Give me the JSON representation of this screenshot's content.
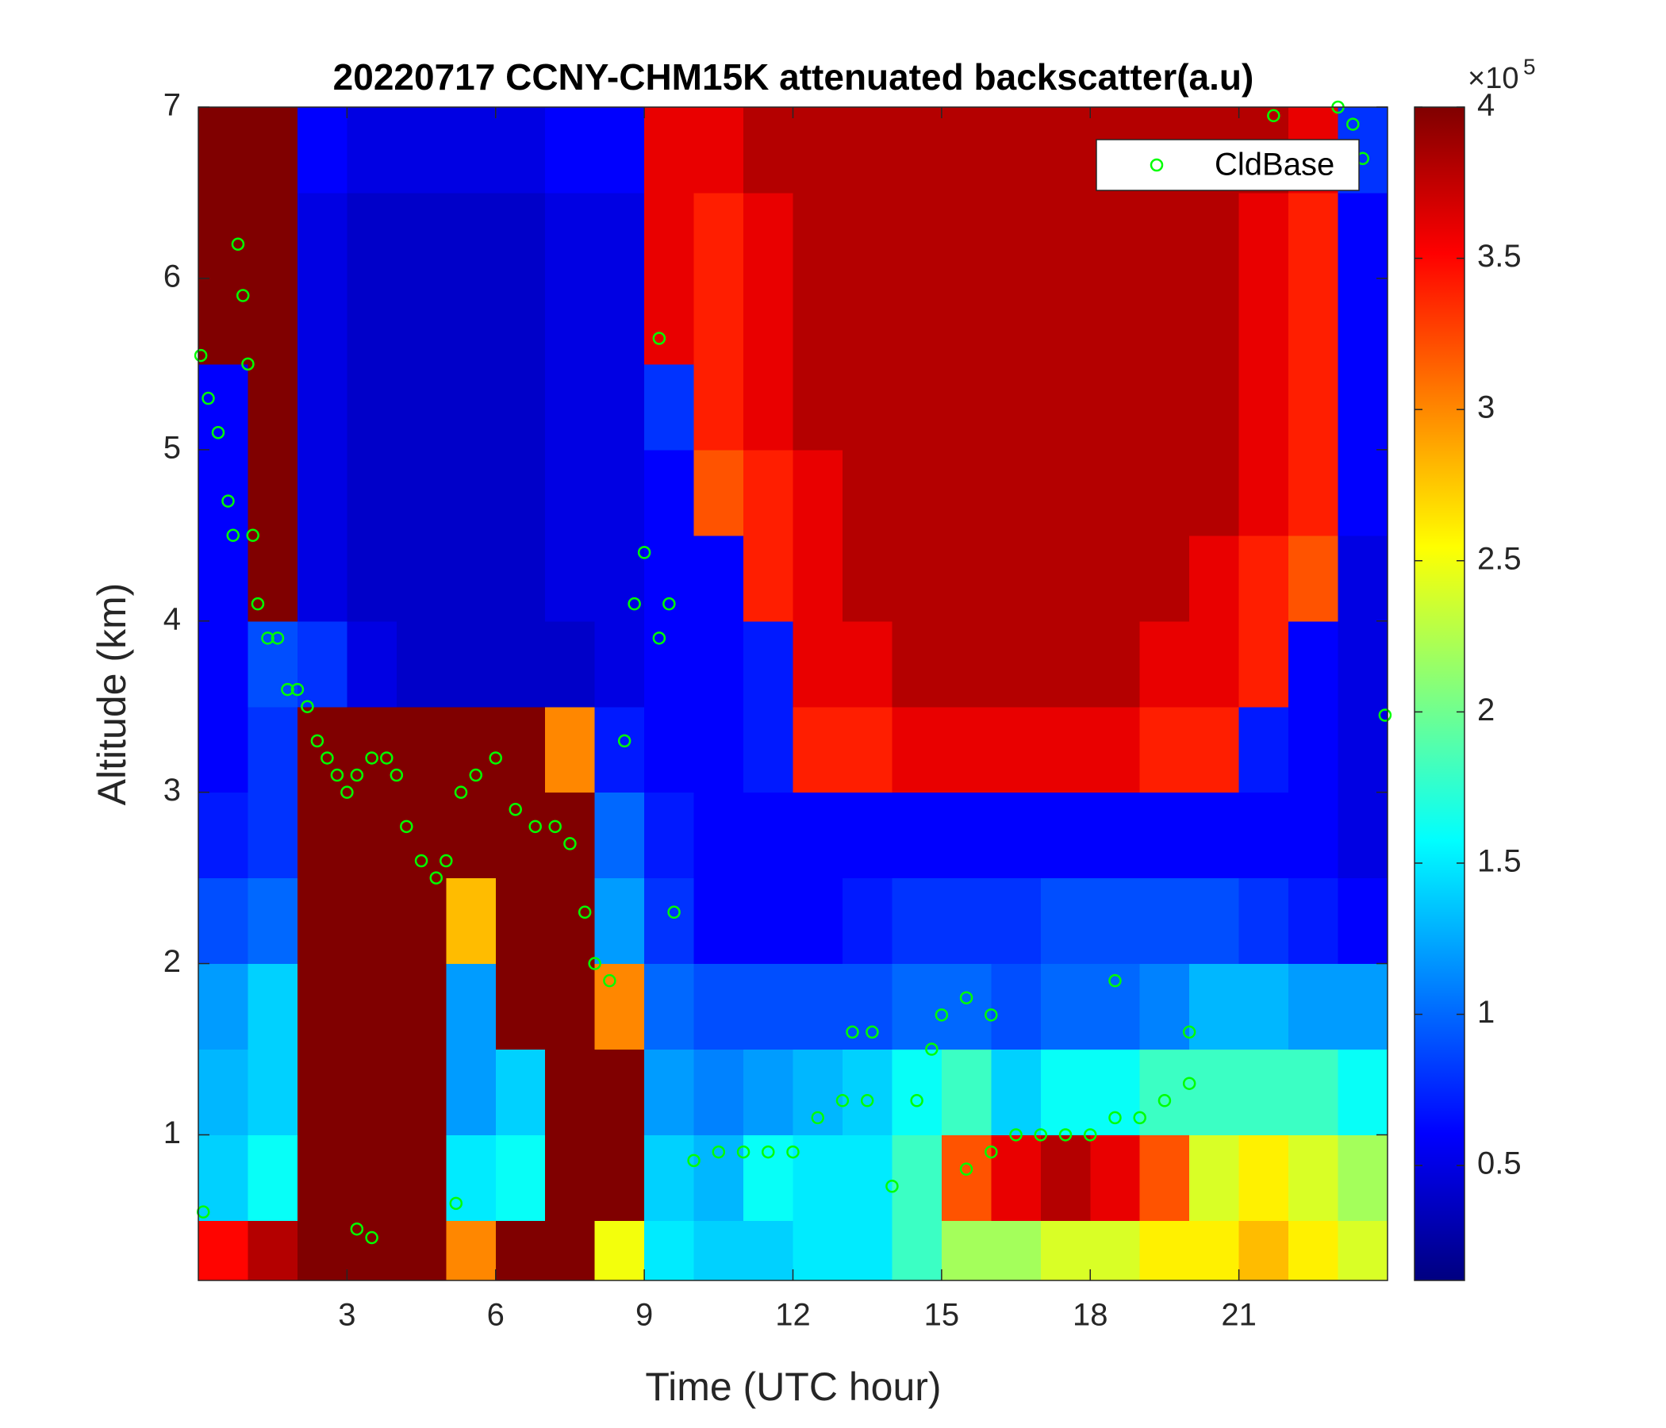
{
  "chart_data": {
    "type": "heatmap",
    "title": "20220717 CCNY-CHM15K attenuated backscatter(a.u)",
    "xlabel": "Time (UTC hour)",
    "ylabel": "Altitude (km)",
    "xlim": [
      0,
      24
    ],
    "ylim": [
      0.15,
      7
    ],
    "xticks": [
      3,
      6,
      9,
      12,
      15,
      18,
      21
    ],
    "yticks": [
      1,
      2,
      3,
      4,
      5,
      6,
      7
    ],
    "xbins": [
      0,
      1,
      2,
      3,
      4,
      5,
      6,
      7,
      8,
      9,
      10,
      11,
      12,
      13,
      14,
      15,
      16,
      17,
      18,
      19,
      20,
      21,
      22,
      23,
      24
    ],
    "ybins": [
      0.15,
      0.5,
      1,
      1.5,
      2,
      2.5,
      3,
      3.5,
      4,
      4.5,
      5,
      5.5,
      6,
      6.5,
      7
    ],
    "z": [
      [
        3.5,
        3.8,
        4,
        4,
        4,
        3,
        4,
        4,
        2.5,
        1.5,
        1.4,
        1.4,
        1.5,
        1.5,
        1.8,
        2.2,
        2.2,
        2.4,
        2.4,
        2.6,
        2.6,
        2.8,
        2.6,
        2.4
      ],
      [
        1.4,
        1.6,
        4,
        4,
        4,
        1.5,
        1.6,
        4,
        4,
        1.4,
        1.3,
        1.6,
        1.5,
        1.5,
        1.8,
        3.2,
        3.6,
        3.8,
        3.6,
        3.2,
        2.4,
        2.6,
        2.4,
        2.2
      ],
      [
        1.3,
        1.4,
        4,
        4,
        4,
        1.2,
        1.4,
        4,
        4,
        1.2,
        1.1,
        1.2,
        1.3,
        1.4,
        1.6,
        1.8,
        1.4,
        1.6,
        1.6,
        1.8,
        1.8,
        1.8,
        1.8,
        1.6
      ],
      [
        1.2,
        1.4,
        4,
        4,
        4,
        1.2,
        4,
        4,
        3,
        1.0,
        0.9,
        0.9,
        0.9,
        0.9,
        1.0,
        1.0,
        0.9,
        1.0,
        1.0,
        1.1,
        1.3,
        1.3,
        1.2,
        1.2
      ],
      [
        0.9,
        1.0,
        4,
        4,
        4,
        2.8,
        4,
        4,
        1.2,
        0.8,
        0.6,
        0.6,
        0.6,
        0.7,
        0.8,
        0.8,
        0.8,
        0.9,
        0.9,
        0.9,
        0.9,
        0.8,
        0.7,
        0.6
      ],
      [
        0.7,
        0.8,
        4,
        4,
        4,
        4,
        4,
        4,
        1.0,
        0.7,
        0.6,
        0.6,
        0.6,
        0.6,
        0.6,
        0.6,
        0.6,
        0.6,
        0.6,
        0.6,
        0.6,
        0.6,
        0.6,
        0.5
      ],
      [
        0.6,
        0.8,
        4,
        4,
        4,
        4,
        4,
        3,
        0.7,
        0.6,
        0.6,
        0.7,
        3.4,
        3.4,
        3.6,
        3.6,
        3.6,
        3.6,
        3.6,
        3.4,
        3.4,
        0.7,
        0.6,
        0.5
      ],
      [
        0.6,
        0.9,
        0.8,
        0.5,
        0.4,
        0.4,
        0.4,
        0.4,
        0.5,
        0.6,
        0.6,
        0.7,
        3.6,
        3.6,
        3.8,
        3.8,
        3.8,
        3.8,
        3.8,
        3.6,
        3.6,
        3.4,
        0.6,
        0.5
      ],
      [
        0.6,
        4,
        0.5,
        0.4,
        0.4,
        0.4,
        0.4,
        0.5,
        0.5,
        0.6,
        0.6,
        3.4,
        3.6,
        3.8,
        3.8,
        3.8,
        3.8,
        3.8,
        3.8,
        3.8,
        3.6,
        3.4,
        3.2,
        0.5
      ],
      [
        0.6,
        4,
        0.5,
        0.4,
        0.4,
        0.4,
        0.4,
        0.5,
        0.5,
        0.6,
        3.2,
        3.4,
        3.6,
        3.8,
        3.8,
        3.8,
        3.8,
        3.8,
        3.8,
        3.8,
        3.8,
        3.6,
        3.4,
        0.6
      ],
      [
        0.6,
        4,
        0.5,
        0.4,
        0.4,
        0.4,
        0.4,
        0.5,
        0.5,
        0.8,
        3.4,
        3.6,
        3.8,
        3.8,
        3.8,
        3.8,
        3.8,
        3.8,
        3.8,
        3.8,
        3.8,
        3.6,
        3.4,
        0.6
      ],
      [
        4,
        4,
        0.5,
        0.4,
        0.4,
        0.4,
        0.4,
        0.5,
        0.5,
        3.6,
        3.4,
        3.6,
        3.8,
        3.8,
        3.8,
        3.8,
        3.8,
        3.8,
        3.8,
        3.8,
        3.8,
        3.6,
        3.4,
        0.6
      ],
      [
        4,
        4,
        0.5,
        0.4,
        0.4,
        0.4,
        0.4,
        0.5,
        0.5,
        3.6,
        3.4,
        3.6,
        3.8,
        3.8,
        3.8,
        3.8,
        3.8,
        3.8,
        3.8,
        3.8,
        3.8,
        3.6,
        3.4,
        0.6
      ],
      [
        4,
        4,
        0.6,
        0.5,
        0.5,
        0.5,
        0.5,
        0.6,
        0.6,
        3.6,
        3.6,
        3.8,
        3.8,
        3.8,
        3.8,
        3.8,
        3.8,
        3.8,
        3.8,
        3.8,
        3.8,
        3.8,
        3.6,
        0.8
      ]
    ],
    "colormap": "jet",
    "clim": [
      0.12,
      4
    ],
    "cticks": [
      0.5,
      1,
      1.5,
      2,
      2.5,
      3,
      3.5,
      4
    ],
    "colorbar_scale": {
      "text": "×10",
      "exponent": 5
    },
    "legend": "northeast",
    "series": [
      {
        "name": "CldBase",
        "type": "scatter",
        "color": "#00ff00",
        "x": [
          0.05,
          0.2,
          0.4,
          0.6,
          0.7,
          0.8,
          0.9,
          1.0,
          1.1,
          1.2,
          1.4,
          1.6,
          1.8,
          2.0,
          2.2,
          2.4,
          2.6,
          2.8,
          3.0,
          3.2,
          3.5,
          3.8,
          4.0,
          4.2,
          4.5,
          4.8,
          5.0,
          5.3,
          5.6,
          6.0,
          6.4,
          6.8,
          7.2,
          7.5,
          7.8,
          8.0,
          8.3,
          8.6,
          8.8,
          9.0,
          9.3,
          9.5,
          9.3,
          9.6,
          10.0,
          10.5,
          11.0,
          11.5,
          12.0,
          12.5,
          13.0,
          13.5,
          13.2,
          13.6,
          14.0,
          14.5,
          14.8,
          15.0,
          15.5,
          16.0,
          15.5,
          16.0,
          16.5,
          17.0,
          17.5,
          18.0,
          18.5,
          18.5,
          19.0,
          19.5,
          20.0,
          20.0,
          21.7,
          23.0,
          23.3,
          23.5,
          23.95,
          3.2,
          3.5,
          5.2,
          0.1
        ],
        "y": [
          5.55,
          5.3,
          5.1,
          4.7,
          4.5,
          6.2,
          5.9,
          5.5,
          4.5,
          4.1,
          3.9,
          3.9,
          3.6,
          3.6,
          3.5,
          3.3,
          3.2,
          3.1,
          3.0,
          3.1,
          3.2,
          3.2,
          3.1,
          2.8,
          2.6,
          2.5,
          2.6,
          3.0,
          3.1,
          3.2,
          2.9,
          2.8,
          2.8,
          2.7,
          2.3,
          2.0,
          1.9,
          3.3,
          4.1,
          4.4,
          3.9,
          4.1,
          5.65,
          2.3,
          0.85,
          0.9,
          0.9,
          0.9,
          0.9,
          1.1,
          1.2,
          1.2,
          1.6,
          1.6,
          0.7,
          1.2,
          1.5,
          1.7,
          1.8,
          1.7,
          0.8,
          0.9,
          1.0,
          1.0,
          1.0,
          1.0,
          1.9,
          1.1,
          1.1,
          1.2,
          1.3,
          1.6,
          6.95,
          7.0,
          6.9,
          6.7,
          3.45,
          0.45,
          0.4,
          0.6,
          0.55
        ]
      }
    ]
  }
}
